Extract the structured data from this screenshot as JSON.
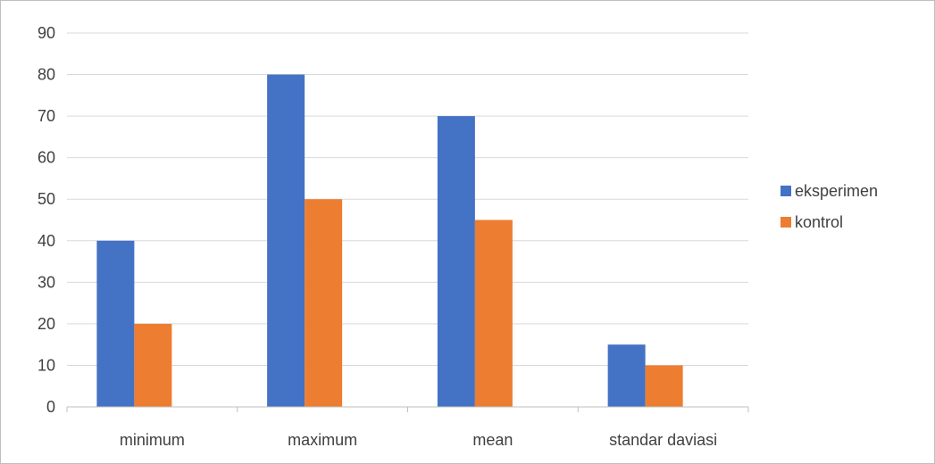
{
  "chart_data": {
    "type": "bar",
    "categories": [
      "minimum",
      "maximum",
      "mean",
      "standar daviasi"
    ],
    "series": [
      {
        "name": "eksperimen",
        "color": "#4472c4",
        "values": [
          40,
          80,
          70,
          15
        ]
      },
      {
        "name": "kontrol",
        "color": "#ed7d31",
        "values": [
          20,
          50,
          45,
          10
        ]
      }
    ],
    "title": "",
    "xlabel": "",
    "ylabel": "",
    "ylim": [
      0,
      90
    ],
    "yticks": [
      0,
      10,
      20,
      30,
      40,
      50,
      60,
      70,
      80,
      90
    ],
    "grid": true,
    "legend_position": "right",
    "gridline_color": "#d9d9d9",
    "axis_color": "#bfbfbf"
  }
}
